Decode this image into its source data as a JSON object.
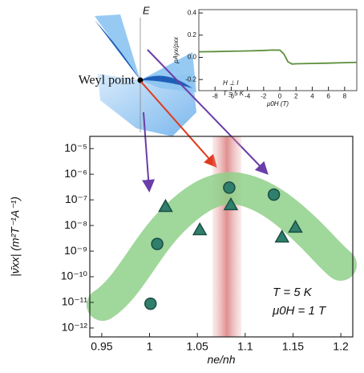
{
  "diagram": {
    "energy_axis": "E",
    "point_label": "Weyl point"
  },
  "chart_data": [
    {
      "type": "scatter",
      "x_label": "ne/nh",
      "y_label": "|ν̄xx| (m²T⁻¹A⁻¹)",
      "log_y": true,
      "xlim": [
        0.9375,
        1.2125
      ],
      "xticks": [
        0.95,
        1.0,
        1.05,
        1.1,
        1.15,
        1.2
      ],
      "ylim": [
        4.5e-13,
        3e-05
      ],
      "yticks": [
        {
          "value": 1e-05,
          "label": "10⁻⁵"
        },
        {
          "value": 1e-06,
          "label": "10⁻⁶"
        },
        {
          "value": 1e-07,
          "label": "10⁻⁷"
        },
        {
          "value": 1e-08,
          "label": "10⁻⁸"
        },
        {
          "value": 1e-09,
          "label": "10⁻⁹"
        },
        {
          "value": 1e-10,
          "label": "10⁻¹⁰"
        },
        {
          "value": 1e-11,
          "label": "10⁻¹¹"
        },
        {
          "value": 1e-12,
          "label": "10⁻¹²"
        }
      ],
      "annotations": [
        "T = 5 K",
        "μ0H = 1 T"
      ],
      "series": [
        {
          "marker": "circle",
          "color": "#2f7f6c",
          "x": [
            1.001,
            1.008,
            1.0833,
            1.13
          ],
          "values": [
            8.9e-12,
            1.9e-09,
            3e-07,
            1.6e-07
          ]
        },
        {
          "marker": "triangle",
          "color": "#2f7f6c",
          "x": [
            1.0167,
            1.0525,
            1.085,
            1.1385,
            1.1525
          ],
          "values": [
            5.5e-08,
            6.8e-09,
            6.4e-08,
            3.5e-09,
            8.5e-09
          ]
        }
      ]
    },
    {
      "type": "line",
      "x_label": "μ0H (T)",
      "y_label": "ρAyx/ρxx",
      "xlim": [
        -10,
        9.5
      ],
      "xticks": [
        -8,
        -6,
        -4,
        -2,
        0,
        2,
        4,
        6,
        8
      ],
      "ylim": [
        -0.3,
        0.43
      ],
      "yticks": [
        0.4,
        0.2,
        {
          "value": 0,
          "label": "0.0"
        },
        -0.2
      ],
      "annotations": [
        "H ⊥ I",
        "T = 5 K"
      ],
      "series": [
        {
          "color": "#5b8f3c",
          "x": [
            -10,
            -8,
            -6,
            -4,
            -2,
            -1,
            0,
            0.5,
            1,
            1.5,
            2,
            4,
            6,
            8,
            9.5
          ],
          "values": [
            0.05,
            0.052,
            0.055,
            0.058,
            0.062,
            0.066,
            0.065,
            0.03,
            -0.04,
            -0.06,
            -0.058,
            -0.055,
            -0.052,
            -0.048,
            -0.045
          ]
        }
      ]
    }
  ]
}
